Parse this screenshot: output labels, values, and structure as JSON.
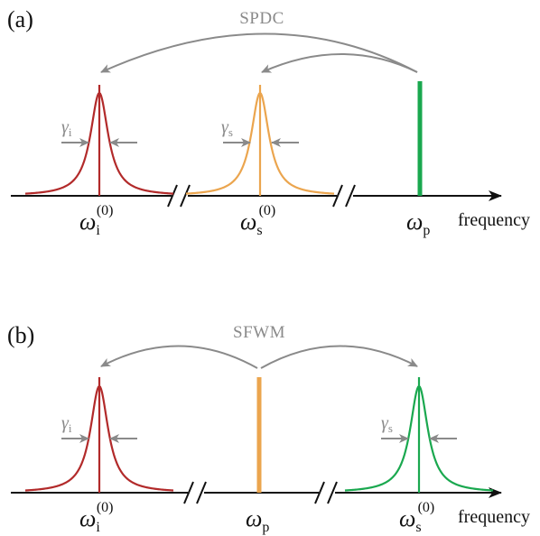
{
  "colors": {
    "idler": "#b22a2a",
    "signal_a": "#eba54e",
    "pump_a": "#1aa84f",
    "pump_b": "#eba54e",
    "signal_b": "#1aa84f",
    "arrows": "#8a8a8a",
    "axis": "#111111"
  },
  "panel_a": {
    "label": "(a)",
    "process": "SPDC",
    "idler": {
      "symbol": "ω",
      "sub": "i",
      "sup": "(0)"
    },
    "signal": {
      "symbol": "ω",
      "sub": "s",
      "sup": "(0)"
    },
    "pump": {
      "symbol": "ω",
      "sub": "p"
    },
    "gamma_i": {
      "symbol": "γ",
      "sub": "i"
    },
    "gamma_s": {
      "symbol": "γ",
      "sub": "s"
    },
    "axis_label": "frequency"
  },
  "panel_b": {
    "label": "(b)",
    "process": "SFWM",
    "idler": {
      "symbol": "ω",
      "sub": "i",
      "sup": "(0)"
    },
    "pump": {
      "symbol": "ω",
      "sub": "p"
    },
    "signal": {
      "symbol": "ω",
      "sub": "s",
      "sup": "(0)"
    },
    "gamma_i": {
      "symbol": "γ",
      "sub": "i"
    },
    "gamma_s": {
      "symbol": "γ",
      "sub": "s"
    },
    "axis_label": "frequency"
  }
}
